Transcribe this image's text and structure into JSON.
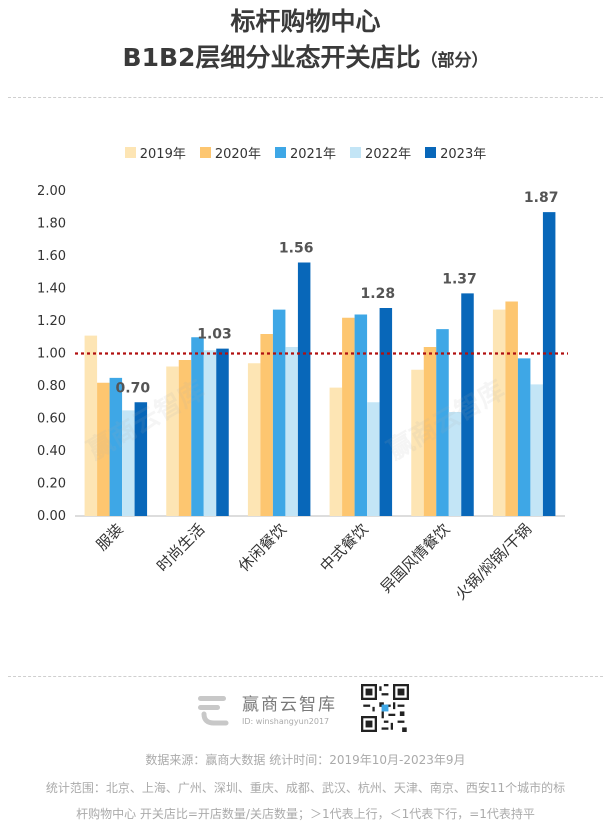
{
  "header": {
    "title_line1": "标杆购物中心",
    "title_line2": "B1B2层细分业态开关店比",
    "title_suffix": "（部分）"
  },
  "legend": [
    "2019年",
    "2020年",
    "2021年",
    "2022年",
    "2023年"
  ],
  "colors": {
    "2019": "#fde5b4",
    "2020": "#fdc670",
    "2021": "#3ea7e6",
    "2022": "#c3e5f6",
    "2023": "#0867b9",
    "reference_line": "#b01010"
  },
  "chart_data": {
    "type": "bar",
    "categories": [
      "服装",
      "时尚生活",
      "休闲餐饮",
      "中式餐饮",
      "异国风情餐饮",
      "火锅/焖锅/干锅"
    ],
    "series": [
      {
        "name": "2019年",
        "values": [
          1.11,
          0.92,
          0.94,
          0.79,
          0.9,
          1.27
        ]
      },
      {
        "name": "2020年",
        "values": [
          0.82,
          0.96,
          1.12,
          1.22,
          1.04,
          1.32
        ]
      },
      {
        "name": "2021年",
        "values": [
          0.85,
          1.1,
          1.27,
          1.24,
          1.15,
          0.97
        ]
      },
      {
        "name": "2022年",
        "values": [
          0.65,
          1.02,
          1.04,
          0.7,
          0.64,
          0.81
        ]
      },
      {
        "name": "2023年",
        "values": [
          0.7,
          1.03,
          1.56,
          1.28,
          1.37,
          1.87
        ]
      }
    ],
    "data_labels": [
      "0.70",
      "1.03",
      "1.56",
      "1.28",
      "1.37",
      "1.87"
    ],
    "yticks": [
      "0.00",
      "0.20",
      "0.40",
      "0.60",
      "0.80",
      "1.00",
      "1.20",
      "1.40",
      "1.60",
      "1.80",
      "2.00"
    ],
    "ylim": [
      0,
      2.0
    ],
    "reference_value": 1.0,
    "grid": false,
    "legend_position": "top-center"
  },
  "branding": {
    "logo_name": "赢商云智库",
    "logo_id": "ID: winshangyun2017",
    "watermark": "赢商云智库"
  },
  "footer": {
    "line1": "数据来源：赢商大数据  统计时间：2019年10月-2023年9月",
    "line2": "统计范围：北京、上海、广州、深圳、重庆、成都、武汉、杭州、天津、南京、西安11个城市的标",
    "line3": "杆购物中心    开关店比=开店数量/关店数量；＞1代表上行，＜1代表下行，=1代表持平"
  }
}
